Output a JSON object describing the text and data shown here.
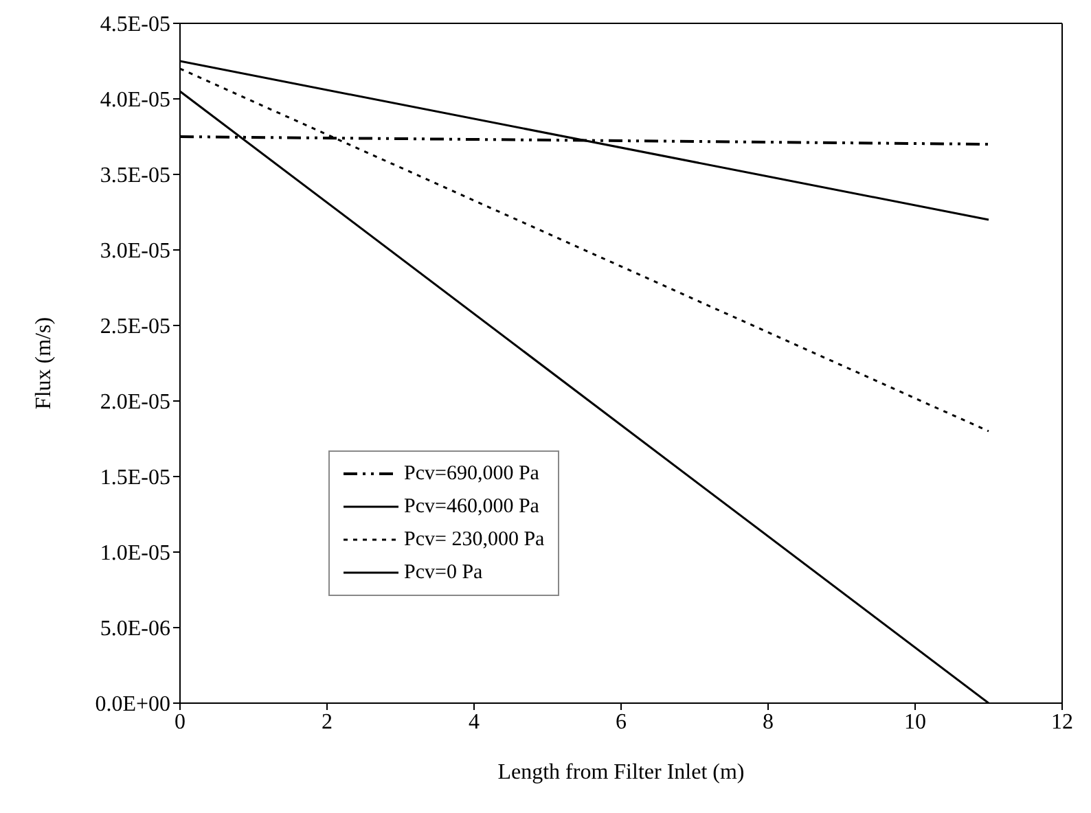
{
  "chart_data": {
    "type": "line",
    "xlabel": "Length from Filter Inlet (m)",
    "ylabel": "Flux (m/s)",
    "x": [
      0,
      11
    ],
    "series": [
      {
        "name": "Pcv=690,000 Pa",
        "color": "#000000",
        "line_style": "dashed",
        "values": [
          3.75e-05,
          3.7e-05
        ]
      },
      {
        "name": "Pcv=460,000 Pa",
        "color": "#000000",
        "line_style": "solid",
        "values": [
          4.25e-05,
          3.2e-05
        ]
      },
      {
        "name": "Pcv= 230,000 Pa",
        "color": "#000000",
        "line_style": "dotted",
        "values": [
          4.2e-05,
          1.8e-05
        ]
      },
      {
        "name": "Pcv=0 Pa",
        "color": "#000000",
        "line_style": "solid",
        "values": [
          4.05e-05,
          0
        ]
      }
    ],
    "xlim": [
      0,
      12
    ],
    "xticks": [
      0,
      2,
      4,
      6,
      8,
      10,
      12
    ],
    "ylim": [
      0,
      4.5e-05
    ],
    "yticks": [
      {
        "value": 0,
        "label": "0.0E+00"
      },
      {
        "value": 5e-06,
        "label": "5.0E-06"
      },
      {
        "value": 1e-05,
        "label": "1.0E-05"
      },
      {
        "value": 1.5e-05,
        "label": "1.5E-05"
      },
      {
        "value": 2e-05,
        "label": "2.0E-05"
      },
      {
        "value": 2.5e-05,
        "label": "2.5E-05"
      },
      {
        "value": 3e-05,
        "label": "3.0E-05"
      },
      {
        "value": 3.5e-05,
        "label": "3.5E-05"
      },
      {
        "value": 4e-05,
        "label": "4.0E-05"
      },
      {
        "value": 4.5e-05,
        "label": "4.5E-05"
      }
    ],
    "grid": false,
    "legend": "bottom left",
    "marker": "none"
  }
}
